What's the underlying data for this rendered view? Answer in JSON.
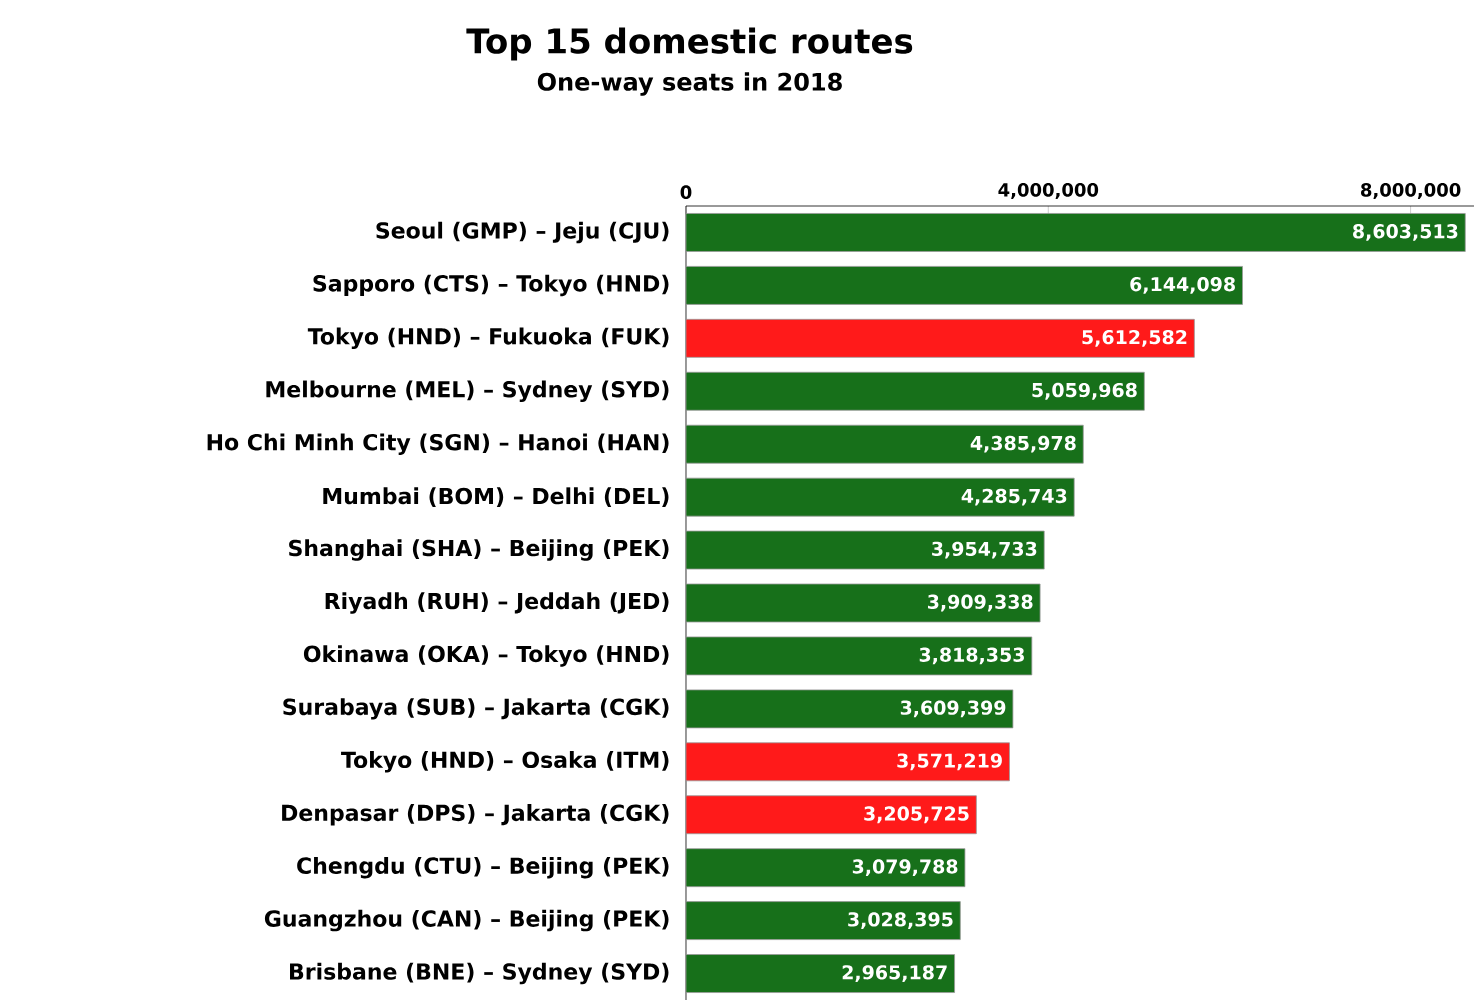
{
  "chart_data": {
    "type": "bar",
    "orientation": "horizontal",
    "title": "Top 15 domestic routes",
    "subtitle": "One-way seats in 2018",
    "categories": [
      "Seoul (GMP) – Jeju (CJU)",
      "Sapporo (CTS) – Tokyo (HND)",
      "Tokyo (HND) – Fukuoka (FUK)",
      "Melbourne (MEL) – Sydney (SYD)",
      "Ho Chi Minh City (SGN) – Hanoi (HAN)",
      "Mumbai (BOM) – Delhi (DEL)",
      "Shanghai (SHA) – Beijing (PEK)",
      "Riyadh (RUH) – Jeddah (JED)",
      "Okinawa (OKA) – Tokyo (HND)",
      "Surabaya (SUB) – Jakarta (CGK)",
      "Tokyo (HND) – Osaka (ITM)",
      "Denpasar (DPS) – Jakarta (CGK)",
      "Chengdu (CTU) – Beijing (PEK)",
      "Guangzhou (CAN) – Beijing (PEK)",
      "Brisbane (BNE) – Sydney (SYD)"
    ],
    "values": [
      8603513,
      6144098,
      5612582,
      5059968,
      4385978,
      4285743,
      3954733,
      3909338,
      3818353,
      3609399,
      3571219,
      3205725,
      3079788,
      3028395,
      2965187
    ],
    "value_labels": [
      "8,603,513",
      "6,144,098",
      "5,612,582",
      "5,059,968",
      "4,385,978",
      "4,285,743",
      "3,954,733",
      "3,909,338",
      "3,818,353",
      "3,609,399",
      "3,571,219",
      "3,205,725",
      "3,079,788",
      "3,028,395",
      "2,965,187"
    ],
    "colors": [
      "#17701a",
      "#17701a",
      "#ff1a1a",
      "#17701a",
      "#17701a",
      "#17701a",
      "#17701a",
      "#17701a",
      "#17701a",
      "#17701a",
      "#ff1a1a",
      "#ff1a1a",
      "#17701a",
      "#17701a",
      "#17701a"
    ],
    "xlim": [
      0,
      8700000
    ],
    "xticks": [
      {
        "value": 0,
        "label": "0"
      },
      {
        "value": 4000000,
        "label": "4,000,000"
      },
      {
        "value": 8000000,
        "label": "8,000,000"
      }
    ]
  }
}
